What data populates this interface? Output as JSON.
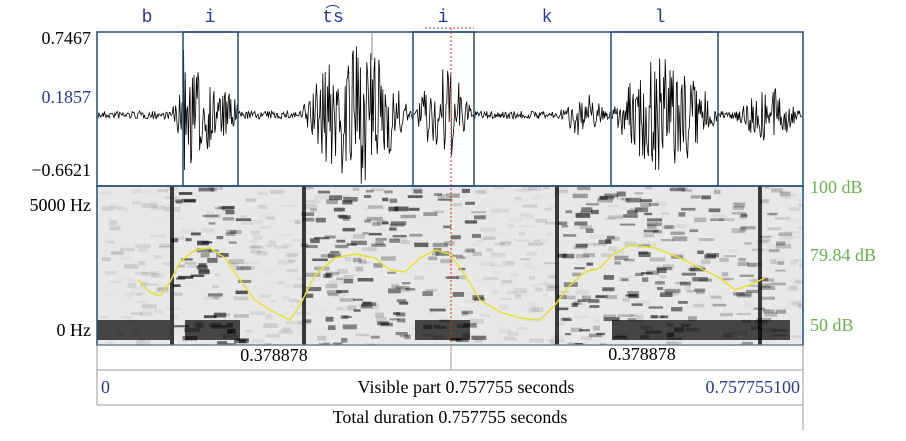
{
  "phonemes": [
    "b",
    "i",
    "t͡s",
    "i",
    "k",
    "l"
  ],
  "waveform_axis": {
    "max": "0.7467",
    "mid": "0.1857",
    "min": "−0.6621"
  },
  "spectrogram_axis": {
    "top": "5000 Hz",
    "bottom": "0 Hz"
  },
  "intensity_axis": {
    "top": "100 dB",
    "mid": "79.84 dB",
    "bottom": "50 dB"
  },
  "cursor_bar": {
    "left": "0.378878",
    "right": "0.378878"
  },
  "visible_bar": {
    "start": "0",
    "label": "Visible part 0.757755 seconds",
    "end": "0.757755100"
  },
  "total_bar": {
    "label": "Total duration 0.757755 seconds"
  }
}
